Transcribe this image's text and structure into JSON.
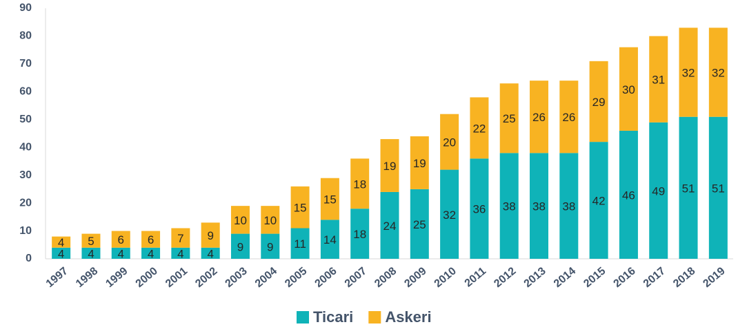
{
  "chart_data": {
    "type": "stacked_bar",
    "categories": [
      "1997",
      "1998",
      "1999",
      "2000",
      "2001",
      "2002",
      "2003",
      "2004",
      "2005",
      "2006",
      "2007",
      "2008",
      "2009",
      "2010",
      "2011",
      "2012",
      "2013",
      "2014",
      "2015",
      "2016",
      "2017",
      "2018",
      "2019"
    ],
    "series": [
      {
        "name": "Ticari",
        "color": "#0fb3b8",
        "values": [
          4,
          4,
          4,
          4,
          4,
          4,
          9,
          9,
          11,
          14,
          18,
          24,
          25,
          32,
          36,
          38,
          38,
          38,
          42,
          46,
          49,
          51,
          51
        ]
      },
      {
        "name": "Askeri",
        "color": "#f8b322",
        "values": [
          4,
          5,
          6,
          6,
          7,
          9,
          10,
          10,
          15,
          15,
          18,
          19,
          19,
          20,
          22,
          25,
          26,
          26,
          29,
          30,
          31,
          32,
          32
        ]
      }
    ],
    "ylim": [
      0,
      90
    ],
    "yticks": [
      0,
      10,
      20,
      30,
      40,
      50,
      60,
      70,
      80,
      90
    ],
    "grid": false,
    "legend": "bottom"
  }
}
